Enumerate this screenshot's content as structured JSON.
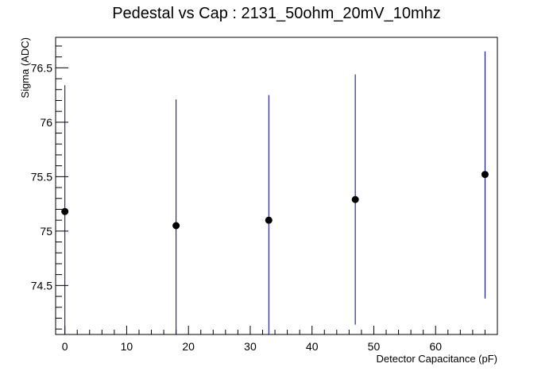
{
  "chart_data": {
    "type": "scatter",
    "title": "Pedestal vs Cap : 2131_50ohm_20mV_10mhz",
    "xlabel": "Detector Capacitance (pF)",
    "ylabel": "Sigma (ADC)",
    "xlim": [
      -1.5,
      70
    ],
    "ylim": [
      74.05,
      76.78
    ],
    "x_ticks": [
      0,
      10,
      20,
      30,
      40,
      50,
      60
    ],
    "y_ticks": [
      74.5,
      75,
      75.5,
      76,
      76.5
    ],
    "grid": false,
    "points": [
      {
        "x": 0,
        "y": 75.18,
        "y_low": 74.05,
        "y_high": 76.34
      },
      {
        "x": 18,
        "y": 75.05,
        "y_low": 74.05,
        "y_high": 76.21
      },
      {
        "x": 33,
        "y": 75.1,
        "y_low": 74.05,
        "y_high": 76.25
      },
      {
        "x": 47,
        "y": 75.29,
        "y_low": 74.14,
        "y_high": 76.44
      },
      {
        "x": 68,
        "y": 75.52,
        "y_low": 74.38,
        "y_high": 76.65
      }
    ],
    "colors": {
      "marker": "#000000",
      "error_bar": "#000099",
      "axis": "#000000"
    }
  }
}
